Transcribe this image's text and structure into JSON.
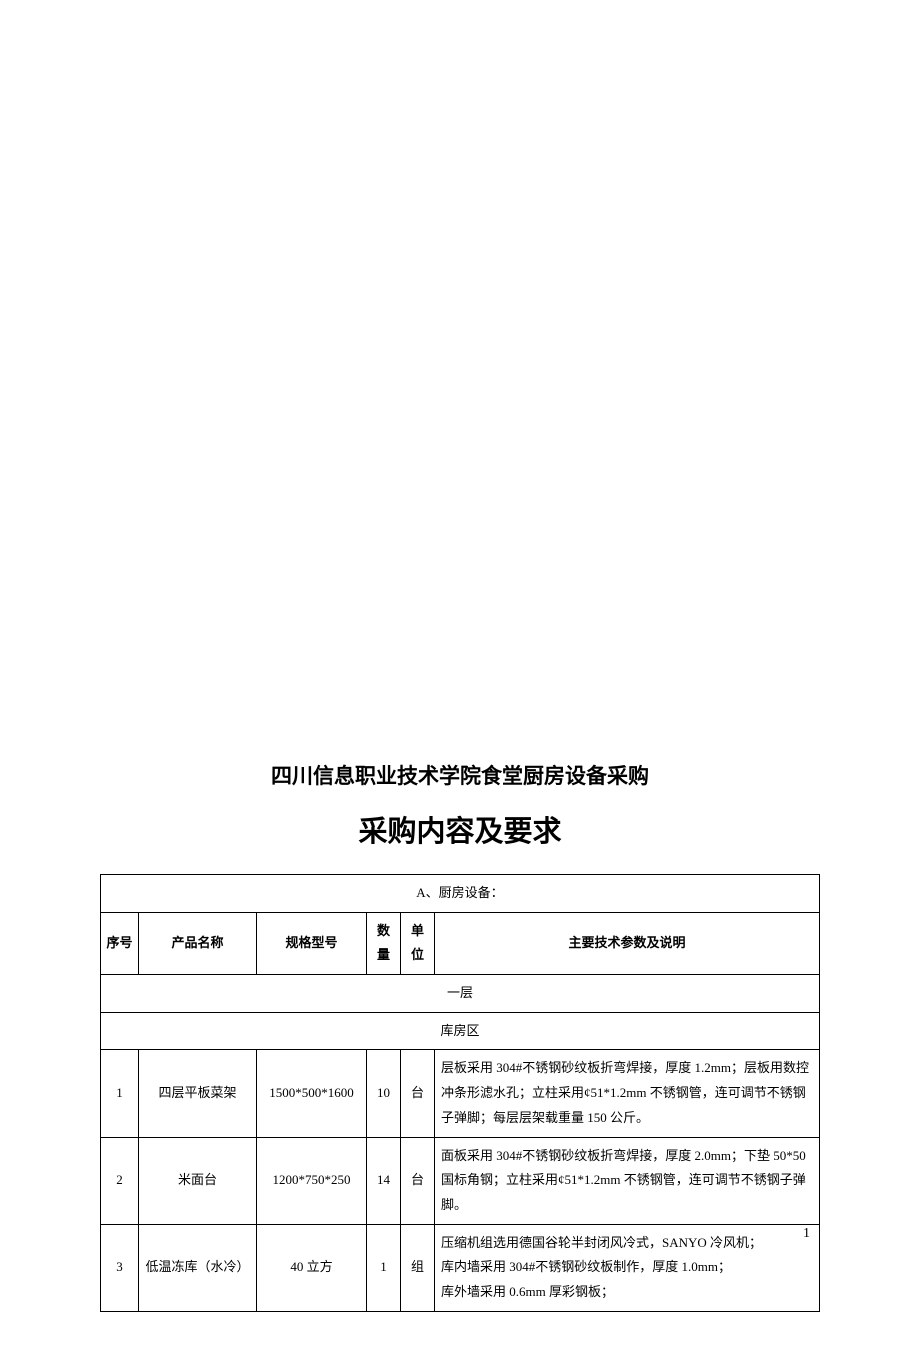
{
  "title1": "四川信息职业技术学院食堂厨房设备采购",
  "title2": "采购内容及要求",
  "sectionA": "A、厨房设备：",
  "headers": {
    "idx": "序号",
    "name": "产品名称",
    "spec": "规格型号",
    "qty": "数量",
    "unit": "单位",
    "desc": "主要技术参数及说明"
  },
  "subheader1": "一层",
  "subheader2": "库房区",
  "rows": [
    {
      "idx": "1",
      "name": "四层平板菜架",
      "spec": "1500*500*1600",
      "qty": "10",
      "unit": "台",
      "desc": "层板采用 304#不锈钢砂纹板折弯焊接，厚度 1.2mm；层板用数控冲条形滤水孔；立柱采用¢51*1.2mm 不锈钢管，连可调节不锈钢子弹脚；每层层架载重量 150 公斤。"
    },
    {
      "idx": "2",
      "name": "米面台",
      "spec": "1200*750*250",
      "qty": "14",
      "unit": "台",
      "desc": "面板采用 304#不锈钢砂纹板折弯焊接，厚度 2.0mm；下垫 50*50 国标角钢；立柱采用¢51*1.2mm 不锈钢管，连可调节不锈钢子弹脚。"
    },
    {
      "idx": "3",
      "name": "低温冻库（水冷）",
      "spec": "40 立方",
      "qty": "1",
      "unit": "组",
      "desc": "压缩机组选用德国谷轮半封闭风冷式，SANYO 冷风机；\n库内墙采用 304#不锈钢砂纹板制作，厚度 1.0mm；\n库外墙采用 0.6mm 厚彩钢板；"
    }
  ],
  "pageNum": "1"
}
